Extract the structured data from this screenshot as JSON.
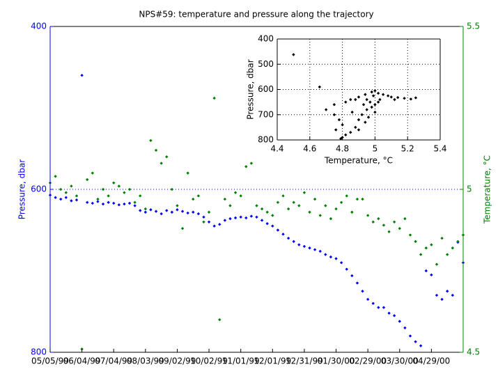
{
  "chart_data": [
    {
      "type": "scatter",
      "title": "NPS#59: temperature and pressure along the trajectory",
      "ylabel": "Pressure, dbar",
      "y2label": "Temperature, °C",
      "ycolor": "#0000ff",
      "y2color": "#008000",
      "ygrid": true,
      "xlim": [
        "1999-05-05",
        "2000-05-29"
      ],
      "xticks": [
        {
          "value": "1999-05-05",
          "label": "05/05/99"
        },
        {
          "value": "1999-06-04",
          "label": "06/04/99"
        },
        {
          "value": "1999-07-04",
          "label": "07/04/99"
        },
        {
          "value": "1999-08-03",
          "label": "08/03/99"
        },
        {
          "value": "1999-09-02",
          "label": "09/02/99"
        },
        {
          "value": "1999-10-02",
          "label": "10/02/99"
        },
        {
          "value": "1999-11-01",
          "label": "11/01/99"
        },
        {
          "value": "1999-12-01",
          "label": "12/01/99"
        },
        {
          "value": "1999-12-31",
          "label": "12/31/99"
        },
        {
          "value": "2000-01-30",
          "label": "01/30/00"
        },
        {
          "value": "2000-02-29",
          "label": "02/29/00"
        },
        {
          "value": "2000-03-30",
          "label": "03/30/00"
        },
        {
          "value": "2000-04-29",
          "label": "04/29/00"
        }
      ],
      "ylim": [
        800,
        400
      ],
      "yticks": [
        400,
        600,
        800
      ],
      "y2lim": [
        4.5,
        5.5
      ],
      "y2ticks": [
        4.5,
        5,
        5.5
      ],
      "x": [
        "1999-05-05",
        "1999-05-10",
        "1999-05-15",
        "1999-05-20",
        "1999-05-25",
        "1999-05-30",
        "1999-06-04",
        "1999-06-09",
        "1999-06-14",
        "1999-06-19",
        "1999-06-24",
        "1999-06-29",
        "1999-07-04",
        "1999-07-09",
        "1999-07-14",
        "1999-07-19",
        "1999-07-24",
        "1999-07-29",
        "1999-08-03",
        "1999-08-08",
        "1999-08-13",
        "1999-08-18",
        "1999-08-23",
        "1999-08-28",
        "1999-09-02",
        "1999-09-07",
        "1999-09-12",
        "1999-09-17",
        "1999-09-22",
        "1999-09-27",
        "1999-10-02",
        "1999-10-07",
        "1999-10-12",
        "1999-10-17",
        "1999-10-22",
        "1999-10-27",
        "1999-11-01",
        "1999-11-06",
        "1999-11-11",
        "1999-11-16",
        "1999-11-21",
        "1999-11-26",
        "1999-12-01",
        "1999-12-06",
        "1999-12-11",
        "1999-12-16",
        "1999-12-21",
        "1999-12-26",
        "1999-12-31",
        "2000-01-05",
        "2000-01-10",
        "2000-01-15",
        "2000-01-20",
        "2000-01-25",
        "2000-01-30",
        "2000-02-04",
        "2000-02-09",
        "2000-02-14",
        "2000-02-19",
        "2000-02-24",
        "2000-02-29",
        "2000-03-05",
        "2000-03-10",
        "2000-03-15",
        "2000-03-20",
        "2000-03-25",
        "2000-03-30",
        "2000-04-04",
        "2000-04-09",
        "2000-04-14",
        "2000-04-19",
        "2000-04-24",
        "2000-04-29",
        "2000-05-04",
        "2000-05-09",
        "2000-05-14",
        "2000-05-19",
        "2000-05-24",
        "2000-05-29"
      ],
      "series": [
        {
          "color": "#0000ff",
          "axis": "y",
          "values": [
            607,
            610,
            612,
            610,
            614,
            613,
            460,
            616,
            617,
            615,
            618,
            616,
            617,
            619,
            618,
            617,
            620,
            626,
            628,
            625,
            627,
            630,
            626,
            628,
            625,
            627,
            629,
            628,
            630,
            634,
            640,
            645,
            643,
            638,
            636,
            635,
            634,
            635,
            633,
            634,
            638,
            642,
            645,
            650,
            655,
            660,
            664,
            668,
            670,
            672,
            674,
            676,
            680,
            683,
            685,
            690,
            698,
            706,
            715,
            725,
            735,
            740,
            745,
            745,
            752,
            755,
            762,
            770,
            780,
            787,
            792,
            700,
            705,
            730,
            735,
            725,
            730,
            665,
            690
          ]
        },
        {
          "color": "#008000",
          "axis": "y2",
          "values": [
            5.02,
            5.04,
            5.0,
            4.99,
            5.01,
            4.98,
            4.51,
            5.03,
            5.05,
            4.97,
            5.0,
            4.98,
            5.02,
            5.01,
            4.99,
            5.0,
            4.96,
            4.98,
            4.94,
            5.15,
            5.12,
            5.08,
            5.1,
            5.0,
            4.95,
            4.88,
            5.05,
            4.97,
            4.98,
            4.9,
            4.93,
            5.28,
            4.6,
            4.97,
            4.95,
            4.99,
            4.98,
            5.07,
            5.08,
            4.95,
            4.94,
            4.93,
            4.92,
            4.96,
            4.98,
            4.94,
            4.96,
            4.95,
            4.99,
            4.93,
            4.97,
            4.92,
            4.95,
            4.91,
            4.94,
            4.96,
            4.98,
            4.93,
            4.97,
            4.97,
            4.92,
            4.9,
            4.91,
            4.89,
            4.87,
            4.9,
            4.88,
            4.91,
            4.86,
            4.84,
            4.8,
            4.82,
            4.83,
            4.77,
            4.85,
            4.8,
            4.82,
            4.84,
            4.86
          ]
        }
      ]
    },
    {
      "type": "scatter",
      "xlabel": "Temperature, °C",
      "ylabel": "Pressure, dbar",
      "grid": true,
      "xlim": [
        4.4,
        5.4
      ],
      "xticks": [
        4.4,
        4.6,
        4.8,
        5,
        5.2,
        5.4
      ],
      "ylim": [
        800,
        400
      ],
      "yticks": [
        400,
        500,
        600,
        700,
        800
      ],
      "x": [
        4.5,
        4.66,
        4.75,
        4.78,
        4.8,
        4.76,
        4.82,
        4.79,
        4.85,
        4.88,
        4.9,
        4.86,
        4.92,
        4.95,
        4.93,
        4.97,
        4.98,
        5.0,
        4.96,
        4.94,
        4.9,
        4.88,
        4.9,
        4.94,
        4.98,
        5.0,
        5.02,
        5.05,
        5.08,
        5.1,
        5.14,
        5.18,
        5.22,
        5.25,
        5.12,
        5.03,
        4.99,
        4.95,
        4.85,
        4.82,
        4.7,
        4.75,
        5.0,
        5.02,
        4.8
      ],
      "series": [
        {
          "color": "#000000",
          "values": [
            462,
            590,
            700,
            720,
            740,
            760,
            780,
            795,
            770,
            750,
            720,
            690,
            700,
            680,
            660,
            650,
            670,
            690,
            710,
            730,
            760,
            640,
            630,
            620,
            610,
            605,
            615,
            620,
            625,
            630,
            632,
            635,
            638,
            633,
            640,
            640,
            625,
            640,
            640,
            650,
            680,
            660,
            660,
            650,
            790
          ]
        }
      ]
    }
  ]
}
